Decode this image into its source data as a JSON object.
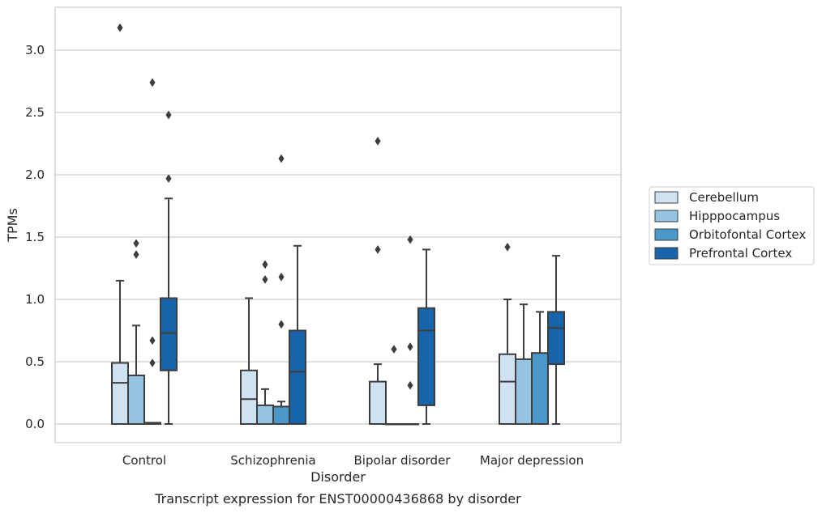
{
  "chart_data": {
    "type": "box",
    "title": "",
    "caption": "Transcript expression for ENST00000436868 by disorder",
    "xlabel": "Disorder",
    "ylabel": "TPMs",
    "ylim": [
      -0.15,
      3.35
    ],
    "yticks": [
      "0.0",
      "0.5",
      "1.0",
      "1.5",
      "2.0",
      "2.5",
      "3.0"
    ],
    "grid": "horizontal",
    "legend_position": "right",
    "categories": [
      "Control",
      "Schizophrenia",
      "Bipolar disorder",
      "Major depression"
    ],
    "series": [
      {
        "name": "Cerebellum",
        "color": "#d0e1f2",
        "boxes": [
          {
            "min": 0.0,
            "q1": 0.0,
            "median": 0.33,
            "q3": 0.49,
            "max": 1.15,
            "outliers": [
              3.18
            ]
          },
          {
            "min": 0.0,
            "q1": 0.0,
            "median": 0.2,
            "q3": 0.43,
            "max": 1.01,
            "outliers": []
          },
          {
            "min": 0.0,
            "q1": 0.0,
            "median": 0.0,
            "q3": 0.34,
            "max": 0.48,
            "outliers": [
              1.4,
              2.27
            ]
          },
          {
            "min": 0.0,
            "q1": 0.0,
            "median": 0.34,
            "q3": 0.56,
            "max": 1.0,
            "outliers": [
              1.42
            ]
          }
        ]
      },
      {
        "name": "Hipppocampus",
        "color": "#94c4df",
        "boxes": [
          {
            "min": 0.0,
            "q1": 0.0,
            "median": 0.0,
            "q3": 0.39,
            "max": 0.79,
            "outliers": [
              1.36,
              1.45
            ]
          },
          {
            "min": 0.0,
            "q1": 0.0,
            "median": 0.0,
            "q3": 0.15,
            "max": 0.28,
            "outliers": [
              1.16,
              1.28
            ]
          },
          {
            "min": 0.0,
            "q1": 0.0,
            "median": 0.0,
            "q3": 0.0,
            "max": 0.0,
            "outliers": [
              0.6
            ]
          },
          {
            "min": 0.0,
            "q1": 0.0,
            "median": 0.0,
            "q3": 0.52,
            "max": 0.96,
            "outliers": []
          }
        ]
      },
      {
        "name": "Orbitofontal Cortex",
        "color": "#4a98c9",
        "boxes": [
          {
            "min": 0.0,
            "q1": 0.0,
            "median": 0.0,
            "q3": 0.01,
            "max": 0.01,
            "outliers": [
              0.49,
              0.67,
              2.74
            ]
          },
          {
            "min": 0.0,
            "q1": 0.0,
            "median": 0.0,
            "q3": 0.14,
            "max": 0.18,
            "outliers": [
              0.8,
              1.18,
              2.13
            ]
          },
          {
            "min": 0.0,
            "q1": 0.0,
            "median": 0.0,
            "q3": 0.0,
            "max": 0.0,
            "outliers": [
              0.31,
              0.62,
              1.48
            ]
          },
          {
            "min": 0.0,
            "q1": 0.0,
            "median": 0.0,
            "q3": 0.57,
            "max": 0.9,
            "outliers": []
          }
        ]
      },
      {
        "name": "Prefrontal Cortex",
        "color": "#1764ab",
        "boxes": [
          {
            "min": 0.0,
            "q1": 0.43,
            "median": 0.73,
            "q3": 1.01,
            "max": 1.81,
            "outliers": [
              1.97,
              2.48
            ]
          },
          {
            "min": 0.0,
            "q1": 0.0,
            "median": 0.42,
            "q3": 0.75,
            "max": 1.43,
            "outliers": []
          },
          {
            "min": 0.0,
            "q1": 0.15,
            "median": 0.75,
            "q3": 0.93,
            "max": 1.4,
            "outliers": []
          },
          {
            "min": 0.0,
            "q1": 0.48,
            "median": 0.77,
            "q3": 0.9,
            "max": 1.35,
            "outliers": []
          }
        ]
      }
    ]
  }
}
